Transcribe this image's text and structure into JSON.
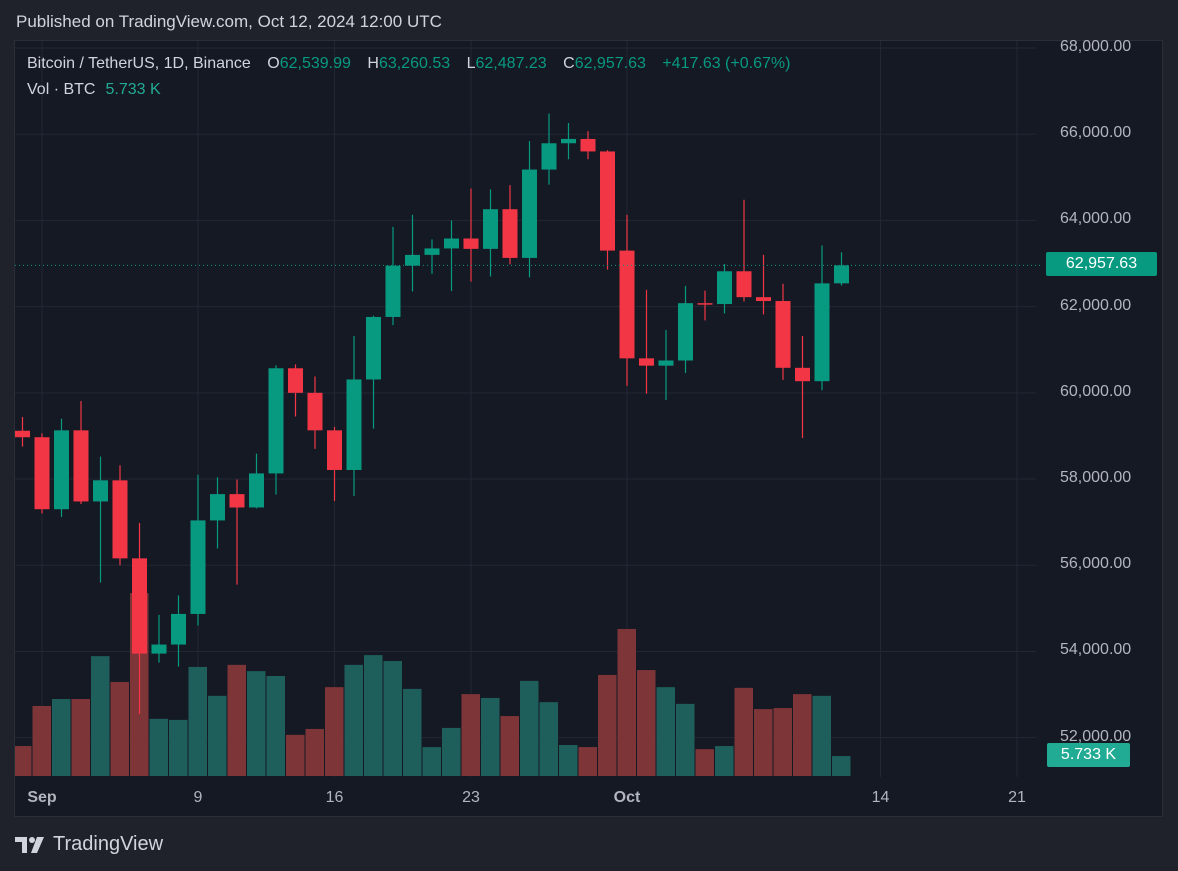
{
  "header": {
    "published": "Published on TradingView.com, Oct 12, 2024 12:00 UTC"
  },
  "legend": {
    "symbol": "Bitcoin / TetherUS, 1D, Binance",
    "o_label": "O",
    "o": "62,539.99",
    "h_label": "H",
    "h": "63,260.53",
    "l_label": "L",
    "l": "62,487.23",
    "c_label": "C",
    "c": "62,957.63",
    "change": "+417.63 (+0.67%)",
    "vol_label": "Vol · BTC",
    "vol": "5.733 K"
  },
  "price_axis": [
    "68,000.00",
    "66,000.00",
    "64,000.00",
    "62,000.00",
    "60,000.00",
    "58,000.00",
    "56,000.00",
    "54,000.00",
    "52,000.00"
  ],
  "last_price_badge": "62,957.63",
  "volume_badge": "5.733 K",
  "time_axis": [
    {
      "label": "Sep",
      "bold": true
    },
    {
      "label": "9"
    },
    {
      "label": "16"
    },
    {
      "label": "23"
    },
    {
      "label": "Oct",
      "bold": true
    },
    {
      "label": "14"
    },
    {
      "label": "21"
    }
  ],
  "footer": {
    "brand": "TradingView"
  },
  "colors": {
    "up": "#089981",
    "down": "#f23645",
    "vol_up": "#1e5e5b",
    "vol_down": "#7e3538",
    "grid": "#232734"
  },
  "chart_data": {
    "type": "candlestick",
    "title": "Bitcoin / TetherUS, 1D, Binance",
    "ylim": [
      51000,
      68500
    ],
    "price_ticks": [
      52000,
      54000,
      56000,
      58000,
      60000,
      62000,
      64000,
      66000,
      68000
    ],
    "last_price": 62957.63,
    "candles": [
      {
        "d": "2024-08-31",
        "o": 59120,
        "h": 59440,
        "l": 58750,
        "c": 58970,
        "v": 8.6
      },
      {
        "d": "2024-09-01",
        "o": 58970,
        "h": 59060,
        "l": 57200,
        "c": 57300,
        "v": 20.1
      },
      {
        "d": "2024-09-02",
        "o": 57300,
        "h": 59400,
        "l": 57120,
        "c": 59130,
        "v": 22.1
      },
      {
        "d": "2024-09-03",
        "o": 59130,
        "h": 59810,
        "l": 57420,
        "c": 57480,
        "v": 22.1
      },
      {
        "d": "2024-09-04",
        "o": 57480,
        "h": 58520,
        "l": 55600,
        "c": 57970,
        "v": 34.4
      },
      {
        "d": "2024-09-05",
        "o": 57970,
        "h": 58320,
        "l": 56000,
        "c": 56160,
        "v": 27.0
      },
      {
        "d": "2024-09-06",
        "o": 56160,
        "h": 56980,
        "l": 52550,
        "c": 53950,
        "v": 52.5
      },
      {
        "d": "2024-09-07",
        "o": 53950,
        "h": 54850,
        "l": 53740,
        "c": 54160,
        "v": 16.4
      },
      {
        "d": "2024-09-08",
        "o": 54160,
        "h": 55300,
        "l": 53650,
        "c": 54870,
        "v": 16.1
      },
      {
        "d": "2024-09-09",
        "o": 54870,
        "h": 58100,
        "l": 54600,
        "c": 57040,
        "v": 31.3
      },
      {
        "d": "2024-09-10",
        "o": 57040,
        "h": 58040,
        "l": 56390,
        "c": 57650,
        "v": 23.0
      },
      {
        "d": "2024-09-11",
        "o": 57650,
        "h": 57990,
        "l": 55550,
        "c": 57340,
        "v": 31.9
      },
      {
        "d": "2024-09-12",
        "o": 57340,
        "h": 58590,
        "l": 57320,
        "c": 58130,
        "v": 30.1
      },
      {
        "d": "2024-09-13",
        "o": 58130,
        "h": 60640,
        "l": 57640,
        "c": 60570,
        "v": 28.7
      },
      {
        "d": "2024-09-14",
        "o": 60570,
        "h": 60660,
        "l": 59450,
        "c": 60000,
        "v": 11.8
      },
      {
        "d": "2024-09-15",
        "o": 60000,
        "h": 60380,
        "l": 58700,
        "c": 59130,
        "v": 13.5
      },
      {
        "d": "2024-09-16",
        "o": 59130,
        "h": 59210,
        "l": 57490,
        "c": 58210,
        "v": 25.5
      },
      {
        "d": "2024-09-17",
        "o": 58210,
        "h": 61320,
        "l": 57610,
        "c": 60310,
        "v": 31.9
      },
      {
        "d": "2024-09-18",
        "o": 60310,
        "h": 61790,
        "l": 59170,
        "c": 61760,
        "v": 34.7
      },
      {
        "d": "2024-09-19",
        "o": 61760,
        "h": 63850,
        "l": 61570,
        "c": 62950,
        "v": 33.0
      },
      {
        "d": "2024-09-20",
        "o": 62950,
        "h": 64130,
        "l": 62350,
        "c": 63200,
        "v": 25.0
      },
      {
        "d": "2024-09-21",
        "o": 63200,
        "h": 63560,
        "l": 62760,
        "c": 63350,
        "v": 8.3
      },
      {
        "d": "2024-09-22",
        "o": 63350,
        "h": 64000,
        "l": 62360,
        "c": 63580,
        "v": 13.8
      },
      {
        "d": "2024-09-23",
        "o": 63580,
        "h": 64740,
        "l": 62580,
        "c": 63340,
        "v": 23.5
      },
      {
        "d": "2024-09-24",
        "o": 63340,
        "h": 64720,
        "l": 62700,
        "c": 64260,
        "v": 22.4
      },
      {
        "d": "2024-09-25",
        "o": 64260,
        "h": 64820,
        "l": 62980,
        "c": 63130,
        "v": 17.2
      },
      {
        "d": "2024-09-26",
        "o": 63130,
        "h": 65840,
        "l": 62680,
        "c": 65180,
        "v": 27.3
      },
      {
        "d": "2024-09-27",
        "o": 65180,
        "h": 66480,
        "l": 64830,
        "c": 65790,
        "v": 21.2
      },
      {
        "d": "2024-09-28",
        "o": 65790,
        "h": 66260,
        "l": 65420,
        "c": 65890,
        "v": 8.9
      },
      {
        "d": "2024-09-29",
        "o": 65890,
        "h": 66070,
        "l": 65420,
        "c": 65600,
        "v": 8.3
      },
      {
        "d": "2024-09-30",
        "o": 65600,
        "h": 65630,
        "l": 62860,
        "c": 63300,
        "v": 29.0
      },
      {
        "d": "2024-10-01",
        "o": 63300,
        "h": 64130,
        "l": 60160,
        "c": 60800,
        "v": 42.2
      },
      {
        "d": "2024-10-02",
        "o": 60800,
        "h": 62390,
        "l": 59980,
        "c": 60630,
        "v": 30.4
      },
      {
        "d": "2024-10-03",
        "o": 60630,
        "h": 61460,
        "l": 59830,
        "c": 60750,
        "v": 25.5
      },
      {
        "d": "2024-10-04",
        "o": 60750,
        "h": 62480,
        "l": 60460,
        "c": 62080,
        "v": 20.7
      },
      {
        "d": "2024-10-05",
        "o": 62080,
        "h": 62370,
        "l": 61680,
        "c": 62060,
        "v": 7.7
      },
      {
        "d": "2024-10-06",
        "o": 62060,
        "h": 62990,
        "l": 61840,
        "c": 62820,
        "v": 8.6
      },
      {
        "d": "2024-10-07",
        "o": 62820,
        "h": 64480,
        "l": 62120,
        "c": 62220,
        "v": 25.3
      },
      {
        "d": "2024-10-08",
        "o": 62220,
        "h": 63200,
        "l": 61820,
        "c": 62130,
        "v": 19.2
      },
      {
        "d": "2024-10-09",
        "o": 62130,
        "h": 62530,
        "l": 60300,
        "c": 60580,
        "v": 19.5
      },
      {
        "d": "2024-10-10",
        "o": 60580,
        "h": 61320,
        "l": 58950,
        "c": 60270,
        "v": 23.5
      },
      {
        "d": "2024-10-11",
        "o": 60270,
        "h": 63420,
        "l": 60060,
        "c": 62540,
        "v": 23.0
      },
      {
        "d": "2024-10-12",
        "o": 62540,
        "h": 63260,
        "l": 62490,
        "c": 62957.63,
        "v": 5.733
      }
    ]
  }
}
